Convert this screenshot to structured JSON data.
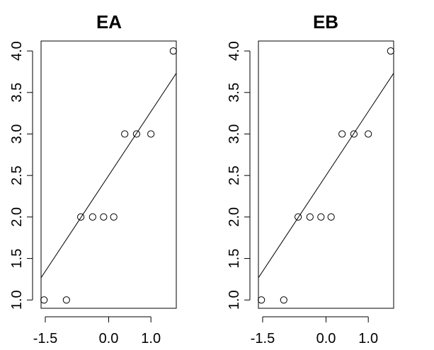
{
  "chart_data": [
    {
      "type": "scatter",
      "title": "EA",
      "xlabel": "",
      "ylabel": "",
      "xlim": [
        -1.6,
        1.6
      ],
      "ylim": [
        0.9,
        4.12
      ],
      "x_ticks": [
        -1.5,
        0.0,
        1.0
      ],
      "x_tick_labels": [
        "-1.5",
        "0.0",
        "1.0"
      ],
      "y_ticks": [
        1.0,
        1.5,
        2.0,
        2.5,
        3.0,
        3.5,
        4.0
      ],
      "y_tick_labels": [
        "1.0",
        "1.5",
        "2.0",
        "2.5",
        "3.0",
        "3.5",
        "4.0"
      ],
      "points": [
        {
          "x": -1.53,
          "y": 1.0
        },
        {
          "x": -1.0,
          "y": 1.0
        },
        {
          "x": -0.66,
          "y": 2.0
        },
        {
          "x": -0.38,
          "y": 2.0
        },
        {
          "x": -0.12,
          "y": 2.0
        },
        {
          "x": 0.12,
          "y": 2.0
        },
        {
          "x": 0.38,
          "y": 3.0
        },
        {
          "x": 0.66,
          "y": 3.0
        },
        {
          "x": 1.0,
          "y": 3.0
        },
        {
          "x": 1.53,
          "y": 4.0
        }
      ],
      "fit_line": {
        "intercept": 2.5,
        "slope": 0.77
      }
    },
    {
      "type": "scatter",
      "title": "EB",
      "xlabel": "",
      "ylabel": "",
      "xlim": [
        -1.6,
        1.6
      ],
      "ylim": [
        0.9,
        4.12
      ],
      "x_ticks": [
        -1.5,
        0.0,
        1.0
      ],
      "x_tick_labels": [
        "-1.5",
        "0.0",
        "1.0"
      ],
      "y_ticks": [
        1.0,
        1.5,
        2.0,
        2.5,
        3.0,
        3.5,
        4.0
      ],
      "y_tick_labels": [
        "1.0",
        "1.5",
        "2.0",
        "2.5",
        "3.0",
        "3.5",
        "4.0"
      ],
      "points": [
        {
          "x": -1.53,
          "y": 1.0
        },
        {
          "x": -1.0,
          "y": 1.0
        },
        {
          "x": -0.66,
          "y": 2.0
        },
        {
          "x": -0.38,
          "y": 2.0
        },
        {
          "x": -0.12,
          "y": 2.0
        },
        {
          "x": 0.12,
          "y": 2.0
        },
        {
          "x": 0.38,
          "y": 3.0
        },
        {
          "x": 0.66,
          "y": 3.0
        },
        {
          "x": 1.0,
          "y": 3.0
        },
        {
          "x": 1.53,
          "y": 4.0
        }
      ],
      "fit_line": {
        "intercept": 2.5,
        "slope": 0.77
      }
    }
  ]
}
